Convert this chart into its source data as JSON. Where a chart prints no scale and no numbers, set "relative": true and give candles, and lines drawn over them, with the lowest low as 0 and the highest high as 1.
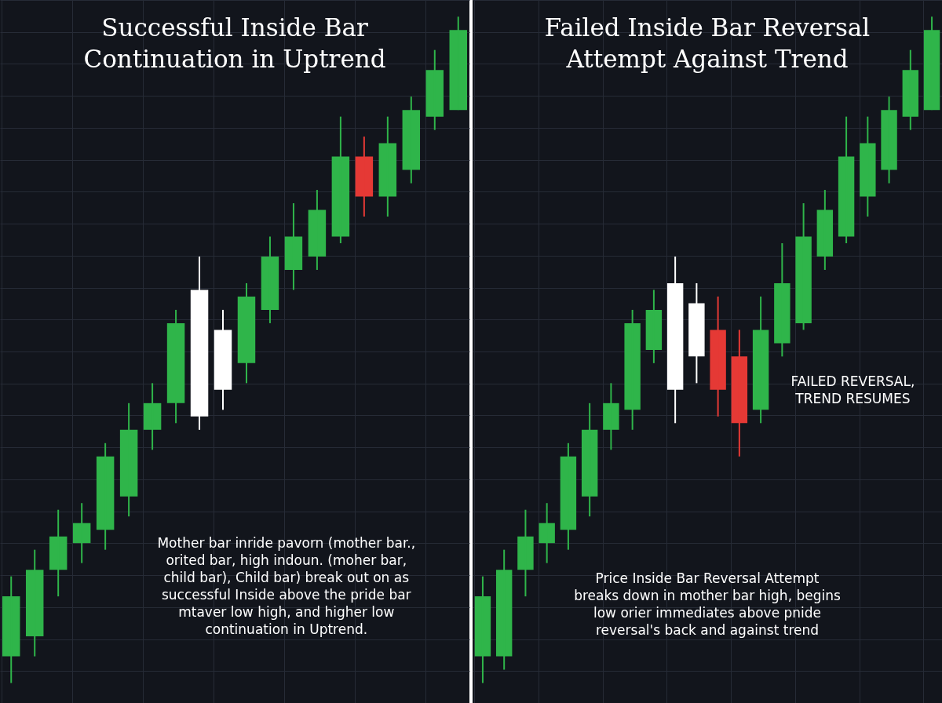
{
  "chart_data": [
    {
      "type": "candlestick",
      "title": "Successful Inside Bar\nContinuation in Uptrend",
      "relative": true,
      "grid": true,
      "categories": [
        null,
        null,
        null,
        null,
        null,
        null,
        null,
        null,
        null,
        null,
        null,
        null,
        null,
        null,
        null,
        null,
        null,
        null,
        null,
        null
      ],
      "ohlc": [
        [
          0.04,
          0.16,
          0,
          0.13
        ],
        [
          0.07,
          0.2,
          0.04,
          0.17
        ],
        [
          0.17,
          0.26,
          0.13,
          0.22
        ],
        [
          0.21,
          0.27,
          0.18,
          0.24
        ],
        [
          0.23,
          0.36,
          0.2,
          0.34
        ],
        [
          0.28,
          0.42,
          0.25,
          0.38
        ],
        [
          0.38,
          0.45,
          0.35,
          0.42
        ],
        [
          0.42,
          0.56,
          0.39,
          0.54
        ],
        [
          0.4,
          0.64,
          0.38,
          0.59
        ],
        [
          0.44,
          0.56,
          0.41,
          0.53
        ],
        [
          0.48,
          0.6,
          0.45,
          0.58
        ],
        [
          0.56,
          0.67,
          0.54,
          0.64
        ],
        [
          0.62,
          0.72,
          0.59,
          0.67
        ],
        [
          0.64,
          0.74,
          0.62,
          0.71
        ],
        [
          0.67,
          0.85,
          0.66,
          0.79
        ],
        [
          0.79,
          0.82,
          0.7,
          0.73
        ],
        [
          0.73,
          0.85,
          0.7,
          0.81
        ],
        [
          0.77,
          0.88,
          0.75,
          0.86
        ],
        [
          0.85,
          0.95,
          0.83,
          0.92
        ],
        [
          0.86,
          1,
          0.86,
          0.98
        ]
      ],
      "colors": [
        "#2fb54a",
        "#2fb54a",
        "#2fb54a",
        "#2fb54a",
        "#2fb54a",
        "#2fb54a",
        "#2fb54a",
        "#2fb54a",
        "#ffffff",
        "#ffffff",
        "#2fb54a",
        "#2fb54a",
        "#2fb54a",
        "#2fb54a",
        "#2fb54a",
        "#e53935",
        "#2fb54a",
        "#2fb54a",
        "#2fb54a",
        "#2fb54a"
      ],
      "annotations": [
        "Mother bar inride pavorn (mother bar.,\norited bar, high indoun. (moher bar,\nchild bar), Child bar) break out on as\nsuccessful Inside above the pride bar\nmtaver low high, and higher low\ncontinuation in Uptrend."
      ]
    },
    {
      "type": "candlestick",
      "title": "Failed Inside Bar Reversal\nAttempt Against Trend",
      "relative": true,
      "grid": true,
      "categories": [
        null,
        null,
        null,
        null,
        null,
        null,
        null,
        null,
        null,
        null,
        null,
        null,
        null,
        null,
        null,
        null,
        null,
        null,
        null,
        null,
        null,
        null
      ],
      "ohlc": [
        [
          0.04,
          0.16,
          0,
          0.13
        ],
        [
          0.04,
          0.2,
          0.02,
          0.17
        ],
        [
          0.17,
          0.26,
          0.13,
          0.22
        ],
        [
          0.21,
          0.27,
          0.18,
          0.24
        ],
        [
          0.23,
          0.36,
          0.2,
          0.34
        ],
        [
          0.28,
          0.42,
          0.25,
          0.38
        ],
        [
          0.38,
          0.45,
          0.35,
          0.42
        ],
        [
          0.41,
          0.56,
          0.38,
          0.54
        ],
        [
          0.5,
          0.59,
          0.48,
          0.56
        ],
        [
          0.44,
          0.64,
          0.39,
          0.6
        ],
        [
          0.49,
          0.6,
          0.45,
          0.57
        ],
        [
          0.53,
          0.58,
          0.4,
          0.44
        ],
        [
          0.49,
          0.53,
          0.34,
          0.39
        ],
        [
          0.41,
          0.58,
          0.39,
          0.53
        ],
        [
          0.51,
          0.66,
          0.49,
          0.6
        ],
        [
          0.54,
          0.72,
          0.53,
          0.67
        ],
        [
          0.64,
          0.74,
          0.62,
          0.71
        ],
        [
          0.67,
          0.85,
          0.66,
          0.79
        ],
        [
          0.73,
          0.85,
          0.7,
          0.81
        ],
        [
          0.77,
          0.88,
          0.75,
          0.86
        ],
        [
          0.85,
          0.95,
          0.83,
          0.92
        ],
        [
          0.86,
          1,
          0.86,
          0.98
        ]
      ],
      "colors": [
        "#2fb54a",
        "#2fb54a",
        "#2fb54a",
        "#2fb54a",
        "#2fb54a",
        "#2fb54a",
        "#2fb54a",
        "#2fb54a",
        "#2fb54a",
        "#ffffff",
        "#ffffff",
        "#e53935",
        "#e53935",
        "#2fb54a",
        "#2fb54a",
        "#2fb54a",
        "#2fb54a",
        "#2fb54a",
        "#2fb54a",
        "#2fb54a",
        "#2fb54a",
        "#2fb54a"
      ],
      "annotations": [
        "FAILED REVERSAL,\nTREND RESUMES",
        "Price Inside Bar Reversal Attempt\nbreaks down in mother bar high, begins\nlow orier immediates above pnide\nreversal's back and against trend"
      ]
    }
  ]
}
